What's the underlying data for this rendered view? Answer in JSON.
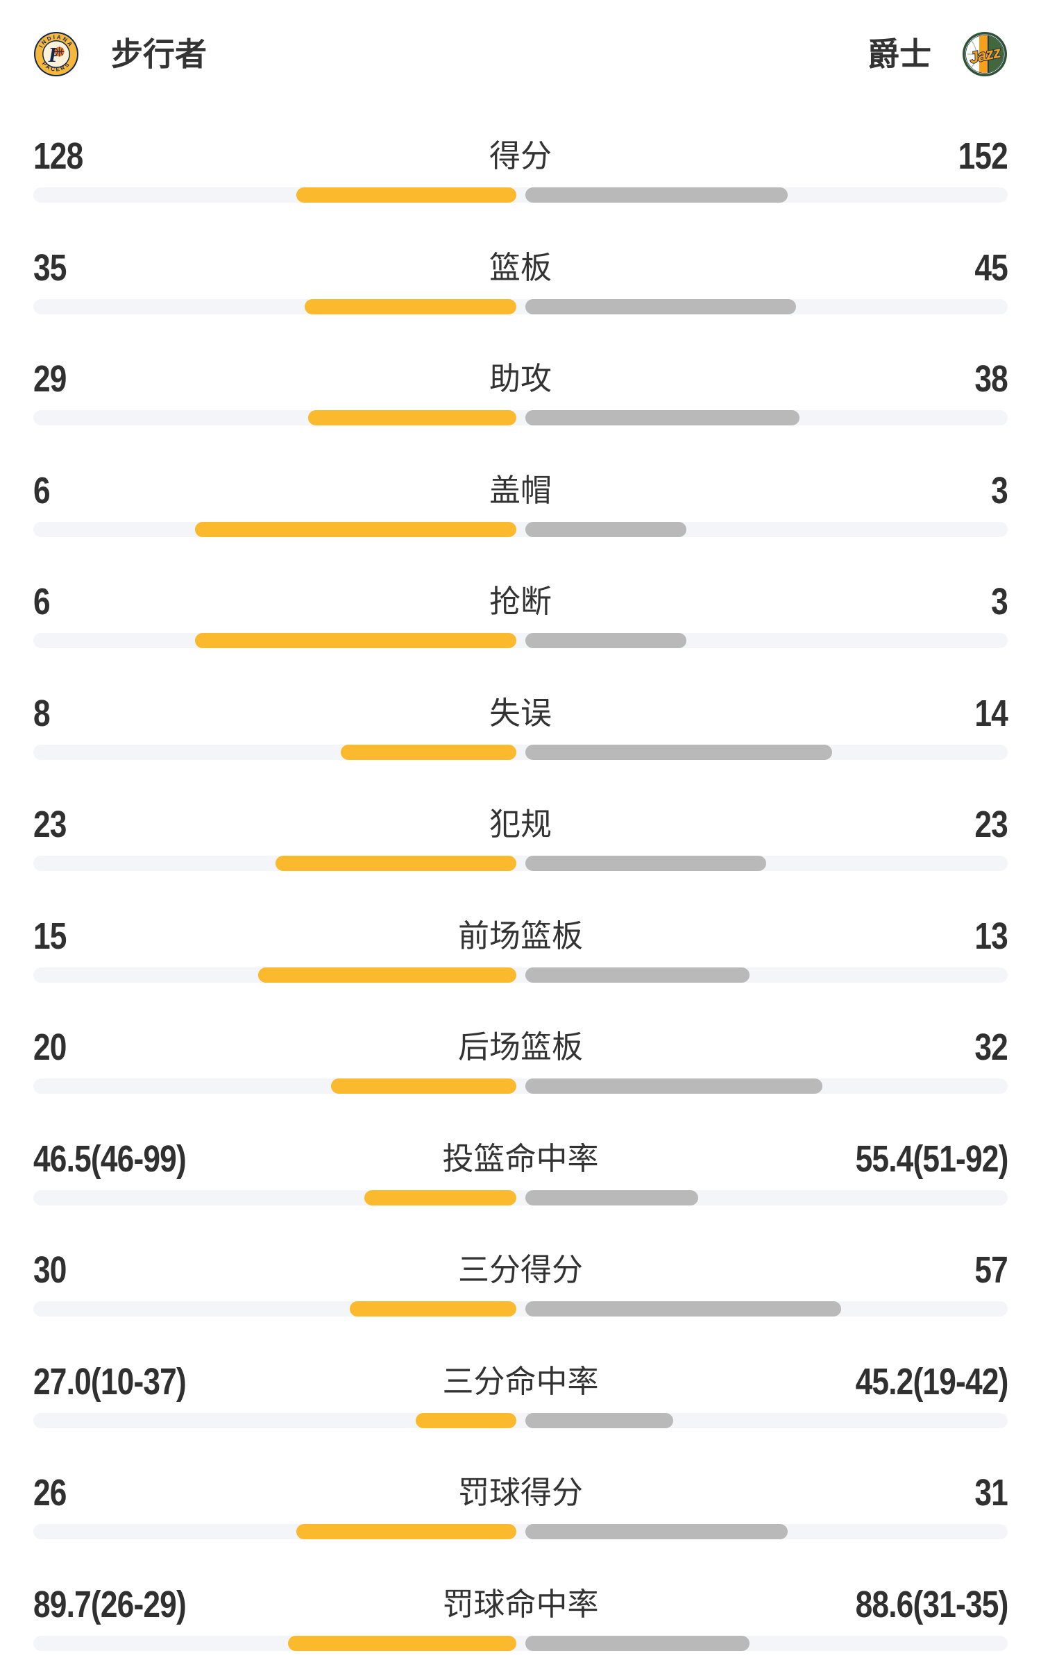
{
  "header": {
    "left_team": "步行者",
    "right_team": "爵士",
    "left_logo_icon": "pacers-logo",
    "right_logo_icon": "jazz-logo"
  },
  "colors": {
    "left_bar": "#FBB92D",
    "right_bar": "#B9B9B9",
    "track": "#F4F5F8",
    "text": "#333333",
    "background": "#FFFFFF"
  },
  "chart_data": {
    "type": "bar",
    "orientation": "horizontal-paired-from-center",
    "left_series": "步行者",
    "right_series": "爵士",
    "rows": [
      {
        "label": "得分",
        "left": "128",
        "right": "152",
        "left_value": 128,
        "right_value": 152,
        "left_bar_pct": 22.6,
        "right_bar_pct": 26.9
      },
      {
        "label": "篮板",
        "left": "35",
        "right": "45",
        "left_value": 35,
        "right_value": 45,
        "left_bar_pct": 21.7,
        "right_bar_pct": 27.8
      },
      {
        "label": "助攻",
        "left": "29",
        "right": "38",
        "left_value": 29,
        "right_value": 38,
        "left_bar_pct": 21.4,
        "right_bar_pct": 28.1
      },
      {
        "label": "盖帽",
        "left": "6",
        "right": "3",
        "left_value": 6,
        "right_value": 3,
        "left_bar_pct": 33.0,
        "right_bar_pct": 16.5
      },
      {
        "label": "抢断",
        "left": "6",
        "right": "3",
        "left_value": 6,
        "right_value": 3,
        "left_bar_pct": 33.0,
        "right_bar_pct": 16.5
      },
      {
        "label": "失误",
        "left": "8",
        "right": "14",
        "left_value": 8,
        "right_value": 14,
        "left_bar_pct": 18.0,
        "right_bar_pct": 31.5
      },
      {
        "label": "犯规",
        "left": "23",
        "right": "23",
        "left_value": 23,
        "right_value": 23,
        "left_bar_pct": 24.7,
        "right_bar_pct": 24.7
      },
      {
        "label": "前场篮板",
        "left": "15",
        "right": "13",
        "left_value": 15,
        "right_value": 13,
        "left_bar_pct": 26.5,
        "right_bar_pct": 23.0
      },
      {
        "label": "后场篮板",
        "left": "20",
        "right": "32",
        "left_value": 20,
        "right_value": 32,
        "left_bar_pct": 19.0,
        "right_bar_pct": 30.5
      },
      {
        "label": "投篮命中率",
        "left": "46.5(46-99)",
        "right": "55.4(51-92)",
        "left_value": 46.5,
        "right_value": 55.4,
        "left_made": 46,
        "left_attempts": 99,
        "right_made": 51,
        "right_attempts": 92,
        "left_bar_pct": 15.6,
        "right_bar_pct": 17.7
      },
      {
        "label": "三分得分",
        "left": "30",
        "right": "57",
        "left_value": 30,
        "right_value": 57,
        "left_bar_pct": 17.1,
        "right_bar_pct": 32.4
      },
      {
        "label": "三分命中率",
        "left": "27.0(10-37)",
        "right": "45.2(19-42)",
        "left_value": 27.0,
        "right_value": 45.2,
        "left_made": 10,
        "left_attempts": 37,
        "right_made": 19,
        "right_attempts": 42,
        "left_bar_pct": 10.3,
        "right_bar_pct": 15.2
      },
      {
        "label": "罚球得分",
        "left": "26",
        "right": "31",
        "left_value": 26,
        "right_value": 31,
        "left_bar_pct": 22.6,
        "right_bar_pct": 26.9
      },
      {
        "label": "罚球命中率",
        "left": "89.7(26-29)",
        "right": "88.6(31-35)",
        "left_value": 89.7,
        "right_value": 88.6,
        "left_made": 26,
        "left_attempts": 29,
        "right_made": 31,
        "right_attempts": 35,
        "left_bar_pct": 23.4,
        "right_bar_pct": 23.0
      }
    ]
  }
}
